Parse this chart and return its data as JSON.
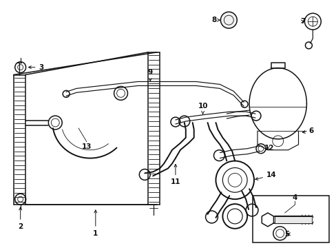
{
  "bg_color": "#ffffff",
  "line_color": "#111111",
  "fig_width": 4.89,
  "fig_height": 3.6,
  "dpi": 100,
  "lw_main": 1.1,
  "lw_thin": 0.6,
  "lw_med": 0.85,
  "fs_label": 7.5
}
